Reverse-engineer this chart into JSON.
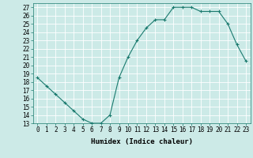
{
  "x": [
    0,
    1,
    2,
    3,
    4,
    5,
    6,
    7,
    8,
    9,
    10,
    11,
    12,
    13,
    14,
    15,
    16,
    17,
    18,
    19,
    20,
    21,
    22,
    23
  ],
  "y": [
    18.5,
    17.5,
    16.5,
    15.5,
    14.5,
    13.5,
    13.0,
    13.0,
    14.0,
    18.5,
    21.0,
    23.0,
    24.5,
    25.5,
    25.5,
    27.0,
    27.0,
    27.0,
    26.5,
    26.5,
    26.5,
    25.0,
    22.5,
    20.5
  ],
  "xlabel": "Humidex (Indice chaleur)",
  "xlim": [
    -0.5,
    23.5
  ],
  "ylim": [
    13,
    27.5
  ],
  "yticks": [
    13,
    14,
    15,
    16,
    17,
    18,
    19,
    20,
    21,
    22,
    23,
    24,
    25,
    26,
    27
  ],
  "xticks": [
    0,
    1,
    2,
    3,
    4,
    5,
    6,
    7,
    8,
    9,
    10,
    11,
    12,
    13,
    14,
    15,
    16,
    17,
    18,
    19,
    20,
    21,
    22,
    23
  ],
  "xtick_labels": [
    "0",
    "1",
    "2",
    "3",
    "4",
    "5",
    "6",
    "7",
    "8",
    "9",
    "10",
    "11",
    "12",
    "13",
    "14",
    "15",
    "16",
    "17",
    "18",
    "19",
    "20",
    "21",
    "22",
    "23"
  ],
  "line_color": "#1a7a6e",
  "marker": "+",
  "marker_size": 3.5,
  "marker_linewidth": 0.8,
  "line_width": 0.8,
  "background_color": "#cceae7",
  "grid_color": "#ffffff",
  "tick_fontsize": 5.5,
  "xlabel_fontsize": 6.5
}
